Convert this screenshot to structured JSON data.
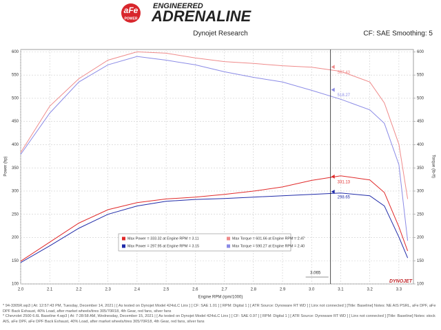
{
  "header": {
    "logo_brand": "aFe",
    "logo_sub": "POWER",
    "tagline_top": "ENGINEERED",
    "tagline_main": "ADRENALINE"
  },
  "chart_data": {
    "type": "line",
    "title": "Dynojet Research",
    "subtitle": "CF: SAE Smoothing: 5",
    "x_label": "Engine RPM (rpm/1000)",
    "y_label": "Power (hp)",
    "y2_label": "Torque (lb-ft)",
    "x": [
      2.0,
      2.1,
      2.2,
      2.3,
      2.4,
      2.5,
      2.6,
      2.7,
      2.8,
      2.9,
      3.0,
      3.1,
      3.2,
      3.25,
      3.3,
      3.33
    ],
    "series": [
      {
        "name": "Max Power = 333.32 at Engine RPM = 3.11",
        "color": "#e02828",
        "values": [
          149,
          190,
          231,
          260,
          275,
          283,
          287,
          293,
          300,
          309,
          323,
          333,
          324,
          297,
          223,
          171
        ]
      },
      {
        "name": "Max Torque = 601.66 at Engine RPM = 2.47",
        "color": "#ef8a8a",
        "axis": "y2",
        "values": [
          383,
          483,
          542,
          582,
          600,
          597,
          587,
          579,
          575,
          570,
          567,
          558,
          535,
          490,
          401,
          283
        ]
      },
      {
        "name": "Max Power = 297.95 at Engine RPM = 3.15",
        "color": "#1f2aa8",
        "values": [
          146,
          182,
          220,
          250,
          268,
          278,
          282,
          284,
          287,
          290,
          293,
          296,
          290,
          268,
          201,
          156
        ]
      },
      {
        "name": "Max Torque = 590.27 at Engine RPM = 2.40",
        "color": "#8a8ae6",
        "axis": "y2",
        "values": [
          379,
          468,
          535,
          572,
          590,
          582,
          572,
          557,
          545,
          535,
          517,
          498,
          475,
          446,
          357,
          193
        ]
      }
    ],
    "xlim": [
      2.0,
      3.35
    ],
    "xticks": [
      {
        "value": 2,
        "label": "2.0"
      },
      2.1,
      2.2,
      2.3,
      2.4,
      2.5,
      2.6,
      2.7,
      2.8,
      2.9,
      {
        "value": 3,
        "label": "3.0"
      },
      3.1,
      3.2,
      3.3
    ],
    "ylim": [
      100,
      605
    ],
    "yticks": [
      100,
      150,
      200,
      250,
      300,
      350,
      400,
      450,
      500,
      550,
      600
    ],
    "y2lim": [
      100,
      605
    ],
    "y2ticks": [
      100,
      150,
      200,
      250,
      300,
      350,
      400,
      450,
      500,
      550,
      600
    ],
    "grid": true,
    "legend": "bottom-center",
    "cursor_x": 3.065,
    "cursor_readouts": [
      567.43,
      518.27,
      331.13,
      298.65
    ],
    "cursor_readout_colors": [
      "#ef8a8a",
      "#8a8ae6",
      "#e02828",
      "#1f2aa8"
    ],
    "brand_mark": "DYNOJET",
    "notes": [
      "* 94-3305R.wp3 | At: 12:57:43 PM, Tuesday, December 14, 2021 | [ As tested on Dynojet Model 424xLC Linx ] [ CF: SAE 1.01 ] [ RPM: Digital 1 ] [ ATR Source: Dynoware RT WD ] [ Linx not connected ] [Title: Baseline] Notes: NE AIS PSRL, aFe DPF, aFe DPF Back Exhaust, 40% Load, after market wheels/tires 305/70R18, 4th Gear, red fans, silver fans",
      "* Chevrolet 2500 6.6L Baseline 4.wp3 | At: 7:28:58 AM, Wednesday, December 15, 2021 | [ As tested on Dynojet Model 424xLC Linx ] [ CF: SAE 0.97 ] [ RPM: Digital 1 ] [ ATR Source: Dynoware RT WD ] [ Linx not connected ] [Title: Baseline] Notes: stock AIS, aFe DPF, aFe DPF Back Exhaust, 40% Load, after market wheels/tires 305/70R18, 4th Gear, red fans, silver fans"
    ]
  }
}
